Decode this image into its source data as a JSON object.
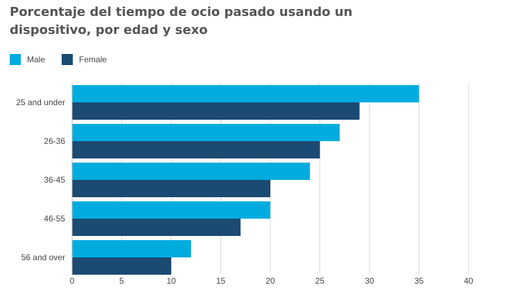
{
  "chart_data": {
    "type": "bar",
    "orientation": "horizontal",
    "title": "Porcentaje del tiempo de ocio pasado usando un dispositivo, por edad y sexo",
    "categories": [
      "25 and under",
      "26-36",
      "36-45",
      "46-55",
      "56 and over"
    ],
    "series": [
      {
        "name": "Male",
        "color": "#00acdf",
        "values": [
          35,
          27,
          24,
          20,
          12
        ]
      },
      {
        "name": "Female",
        "color": "#1b4a72",
        "values": [
          29,
          25,
          20,
          17,
          10
        ]
      }
    ],
    "xlim": [
      0,
      40
    ],
    "xticks": [
      0,
      5,
      10,
      15,
      20,
      25,
      30,
      35,
      40
    ],
    "grid": true,
    "legend_position": "top-left"
  }
}
